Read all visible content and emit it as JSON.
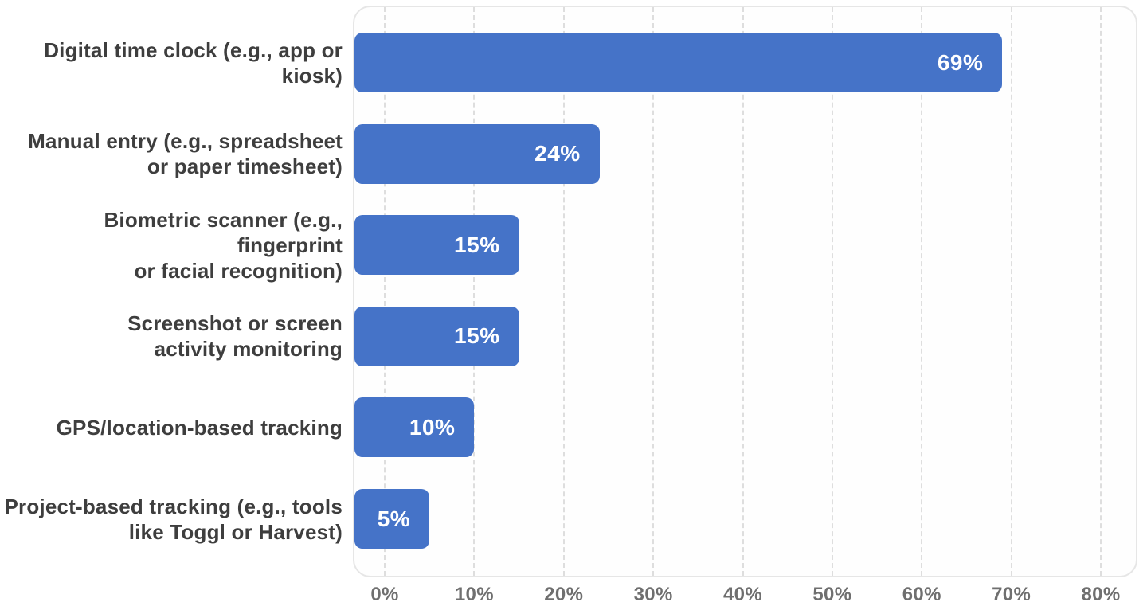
{
  "chart_data": {
    "type": "bar",
    "orientation": "horizontal",
    "title": "",
    "xlabel": "",
    "ylabel": "",
    "xlim": [
      0,
      80
    ],
    "grid": "vertical-dashed",
    "legend": "none",
    "categories": [
      "Digital time clock (e.g., app or kiosk)",
      "Manual entry (e.g., spreadsheet or paper timesheet)",
      "Biometric scanner (e.g., fingerprint or facial recognition)",
      "Screenshot or screen activity monitoring",
      "GPS/location-based tracking",
      "Project-based tracking (e.g., tools like Toggl or Harvest)"
    ],
    "category_lines": [
      [
        "Digital time clock (e.g., app or kiosk)"
      ],
      [
        "Manual entry (e.g., spreadsheet",
        "or paper timesheet)"
      ],
      [
        "Biometric scanner (e.g., fingerprint",
        "or facial recognition)"
      ],
      [
        "Screenshot or screen",
        "activity monitoring"
      ],
      [
        "GPS/location-based tracking"
      ],
      [
        "Project-based tracking (e.g., tools",
        "like Toggl or Harvest)"
      ]
    ],
    "values": [
      69,
      24,
      15,
      15,
      10,
      5
    ],
    "value_labels": [
      "69%",
      "24%",
      "15%",
      "15%",
      "10%",
      "5%"
    ],
    "x_tick_values": [
      0,
      10,
      20,
      30,
      40,
      50,
      60,
      70,
      80
    ],
    "x_tick_labels": [
      "0%",
      "10%",
      "20%",
      "30%",
      "40%",
      "50%",
      "60%",
      "70%",
      "80%"
    ],
    "colors": {
      "bar": "#4573c8",
      "value_label": "#ffffff",
      "category_label": "#3e3e3e",
      "tick_label": "#6f6f6f",
      "gridline": "#dedede",
      "frame_border": "#e6e6e6",
      "background": "#ffffff"
    }
  }
}
